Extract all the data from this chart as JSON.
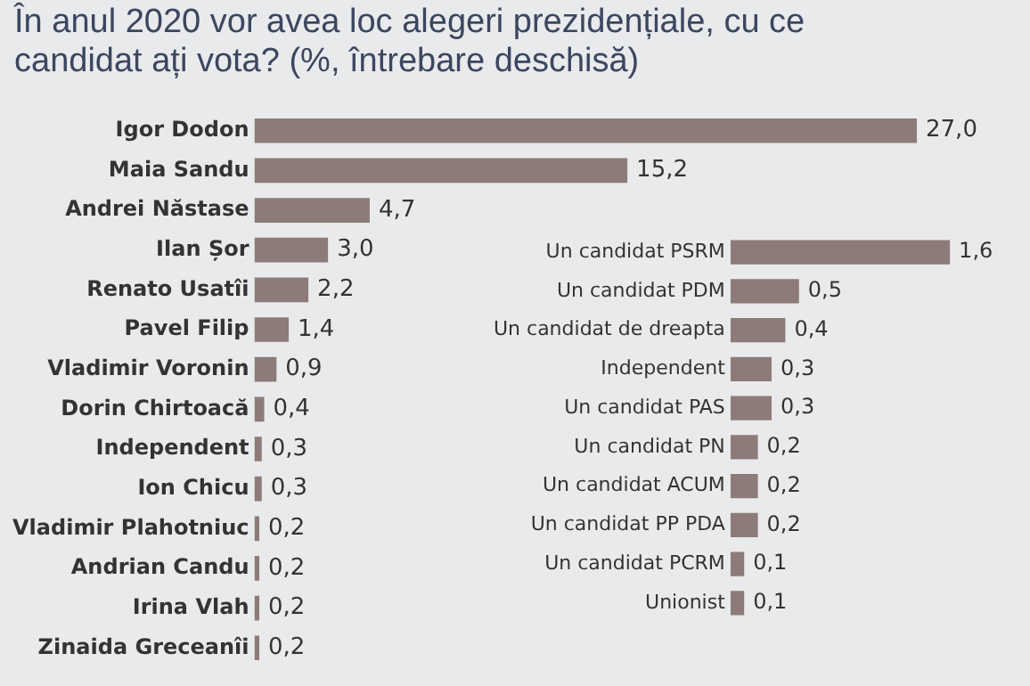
{
  "chart_data": [
    {
      "type": "bar",
      "orientation": "horizontal",
      "title": "În anul 2020 vor avea loc alegeri prezidențiale, cu ce candidat ați vota? (%, întrebare deschisă)",
      "categories": [
        "Igor Dodon",
        "Maia Sandu",
        "Andrei Năstase",
        "Ilan Șor",
        "Renato Usatîi",
        "Pavel Filip",
        "Vladimir Voronin",
        "Dorin Chirtoacă",
        "Independent",
        "Ion Chicu",
        "Vladimir Plahotniuc",
        "Andrian Candu",
        "Irina Vlah",
        "Zinaida Greceanîi"
      ],
      "values": [
        27.0,
        15.2,
        4.7,
        3.0,
        2.2,
        1.4,
        0.9,
        0.4,
        0.3,
        0.3,
        0.2,
        0.2,
        0.2,
        0.2
      ],
      "value_labels": [
        "27,0",
        "15,2",
        "4,7",
        "3,0",
        "2,2",
        "1,4",
        "0,9",
        "0,4",
        "0,3",
        "0,3",
        "0,2",
        "0,2",
        "0,2",
        "0,2"
      ],
      "color": "#8c7b78",
      "tick_labels": "y",
      "grid": false,
      "legend": false
    },
    {
      "type": "bar",
      "orientation": "horizontal",
      "categories": [
        "Un candidat PSRM",
        "Un candidat PDM",
        "Un candidat de dreapta",
        "Independent",
        "Un candidat PAS",
        "Un candidat PN",
        "Un candidat ACUM",
        "Un candidat PP PDA",
        "Un candidat PCRM",
        "Unionist"
      ],
      "values": [
        1.6,
        0.5,
        0.4,
        0.3,
        0.3,
        0.2,
        0.2,
        0.2,
        0.1,
        0.1
      ],
      "value_labels": [
        "1,6",
        "0,5",
        "0,4",
        "0,3",
        "0,3",
        "0,2",
        "0,2",
        "0,2",
        "0,1",
        "0,1"
      ],
      "color": "#8c7b78",
      "tick_labels": "y",
      "grid": false,
      "legend": false
    }
  ]
}
